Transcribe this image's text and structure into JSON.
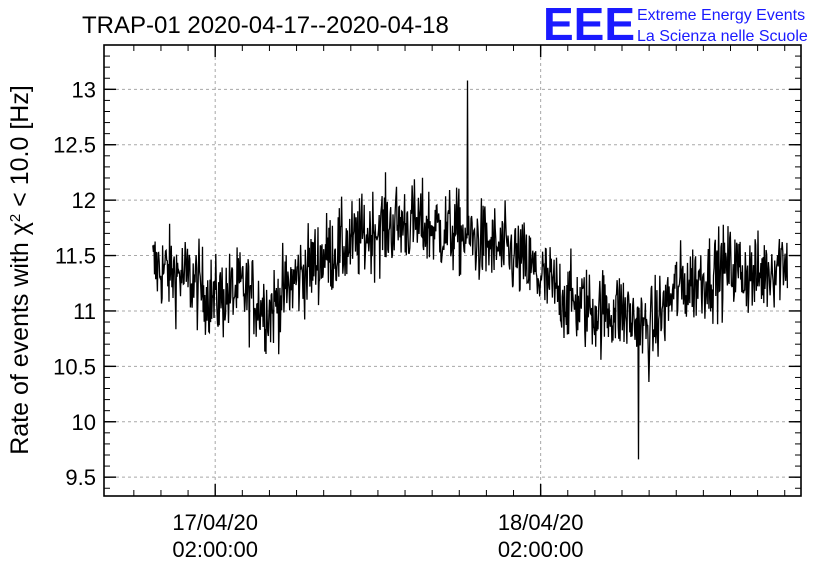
{
  "chart_data": {
    "type": "line",
    "title": "TRAP-01 2020-04-17--2020-04-18",
    "ylabel_main": "Rate of events with χ",
    "ylabel_sup": "2",
    "ylabel_tail": " < 10.0 [Hz]",
    "xlabel": "",
    "ylim": [
      9.33,
      13.4
    ],
    "y_ticks": [
      9.5,
      10,
      10.5,
      11,
      11.5,
      12,
      12.5,
      13
    ],
    "x_tick_labels": [
      {
        "date": "17/04/20",
        "time": "02:00:00",
        "hours": 2
      },
      {
        "date": "18/04/20",
        "time": "02:00:00",
        "hours": 26
      }
    ],
    "x_start": "2020-04-17 00:00:00",
    "x_hours_range": [
      -6.2,
      45.2
    ],
    "data_hours_range": [
      -2.6,
      44.2
    ],
    "series": [
      {
        "name": "",
        "color": "#000000",
        "profile_hours": [
          -2.6,
          0,
          2,
          4,
          6,
          8,
          10,
          12,
          14,
          16,
          18,
          20,
          22,
          24,
          26,
          28,
          30,
          32,
          34,
          36,
          38,
          40,
          42,
          44.2
        ],
        "profile_rate": [
          11.4,
          11.3,
          11.1,
          11.2,
          11.0,
          11.3,
          11.5,
          11.6,
          11.75,
          11.8,
          11.75,
          11.7,
          11.6,
          11.5,
          11.3,
          11.1,
          11.0,
          11.0,
          10.8,
          11.2,
          11.3,
          11.4,
          11.3,
          11.5
        ],
        "noise_amplitude": 0.35,
        "minimum": {
          "hours": 33.2,
          "rate": 9.66
        },
        "maximum": {
          "hours": 20.6,
          "rate": 13.08
        }
      }
    ],
    "grid": true,
    "legend": "none"
  },
  "logo": {
    "mark": "EEE",
    "line1": "Extreme Energy Events",
    "line2": "La Scienza nelle Scuole",
    "color": "#1a1aff"
  }
}
